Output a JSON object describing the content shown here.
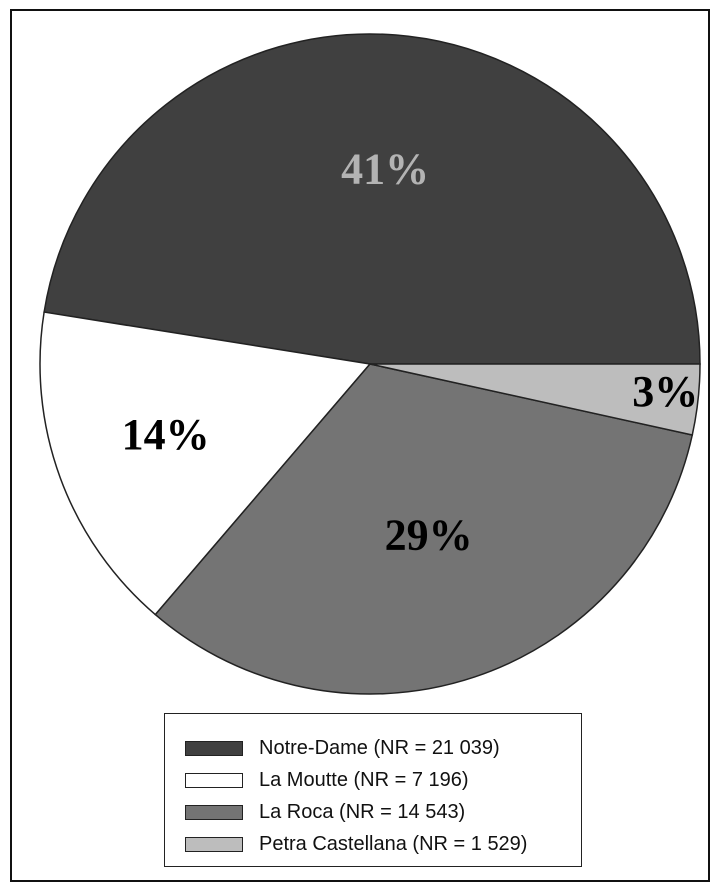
{
  "chart_data": {
    "type": "pie",
    "slices": [
      {
        "label": "Notre-Dame (NR = 21 039)",
        "value": 21039,
        "percent_label": "41%",
        "color": "#404040",
        "label_color": "#b3b3b3"
      },
      {
        "label": "La Moutte (NR = 7 196)",
        "value": 7196,
        "percent_label": "14%",
        "color": "#ffffff",
        "label_color": "#000000"
      },
      {
        "label": "La Roca (NR = 14 543)",
        "value": 14543,
        "percent_label": "29%",
        "color": "#747474",
        "label_color": "#000000"
      },
      {
        "label": "Petra Castellana (NR = 1 529)",
        "value": 1529,
        "percent_label": "3%",
        "color": "#bdbdbd",
        "label_color": "#000000"
      }
    ],
    "start_angle_deg": 0,
    "direction": "counterclockwise",
    "legend_position": "bottom"
  }
}
